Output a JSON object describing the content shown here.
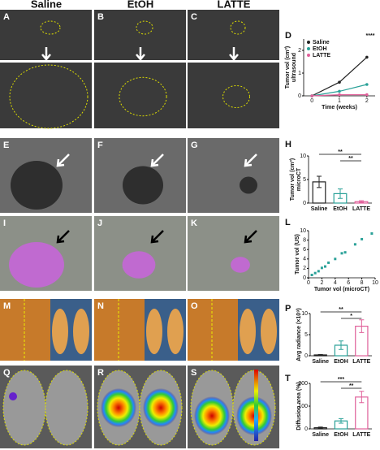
{
  "column_headers": [
    "Saline",
    "EtOH",
    "LATTE"
  ],
  "panel_labels": [
    "A",
    "B",
    "C",
    "D",
    "E",
    "F",
    "G",
    "H",
    "I",
    "J",
    "K",
    "L",
    "M",
    "N",
    "O",
    "P",
    "Q",
    "R",
    "S",
    "T"
  ],
  "chart_data": [
    {
      "type": "line",
      "y_label": "Tumor vol (cm³)",
      "y_label_2": "ultrasound",
      "x_label": "Time (weeks)",
      "x": [
        0,
        1,
        2
      ],
      "xlim": [
        -0.3,
        2.3
      ],
      "xticks": [
        0,
        1,
        2
      ],
      "ylim": [
        0,
        2.5
      ],
      "yticks": [
        0,
        1,
        2
      ],
      "annotation": "****",
      "series": [
        {
          "name": "Saline",
          "color": "#222222",
          "values": [
            0,
            0.6,
            1.7
          ]
        },
        {
          "name": "EtOH",
          "color": "#2aa198",
          "values": [
            0,
            0.2,
            0.5
          ]
        },
        {
          "name": "LATTE",
          "color": "#e0609a",
          "values": [
            0,
            0.05,
            0.05
          ]
        }
      ]
    },
    {
      "type": "bar",
      "y_label": "Tumor vol (cm³)",
      "y_label_2": "microCT",
      "categories": [
        "Saline",
        "EtOH",
        "LATTE"
      ],
      "values": [
        4.5,
        2,
        0.3
      ],
      "errors": [
        1.2,
        1,
        0.2
      ],
      "colors": [
        "#222222",
        "#2aa198",
        "#e0609a"
      ],
      "ylim": [
        0,
        10
      ],
      "yticks": [
        0,
        5,
        10
      ],
      "annotations": [
        "**",
        "**"
      ]
    },
    {
      "type": "scatter",
      "y_label": "Tumor vol (US)",
      "x_label": "Tumor vol (microCT)",
      "x": [
        0.5,
        1,
        1.5,
        2,
        2.5,
        3,
        4,
        5,
        5.5,
        7,
        8,
        9.5
      ],
      "values": [
        0.6,
        1,
        1.4,
        2.1,
        2.4,
        3.2,
        4,
        5.2,
        5.4,
        7.1,
        8.2,
        9.4
      ],
      "color": "#2aa198",
      "xlim": [
        0,
        10
      ],
      "xticks": [
        0,
        2,
        4,
        6,
        8,
        10
      ],
      "ylim": [
        0,
        10
      ],
      "yticks": [
        0,
        2,
        4,
        6,
        8,
        10
      ]
    },
    {
      "type": "bar",
      "y_label": "Avg radiance (×10⁹)",
      "categories": [
        "Saline",
        "EtOH",
        "LATTE"
      ],
      "values": [
        0.2,
        2.5,
        7
      ],
      "errors": [
        0.1,
        1,
        1.5
      ],
      "colors": [
        "#222222",
        "#2aa198",
        "#e0609a"
      ],
      "ylim": [
        0,
        10
      ],
      "yticks": [
        0,
        5,
        10
      ],
      "annotations": [
        "**",
        "*"
      ]
    },
    {
      "type": "bar",
      "y_label": "Diffusion area (%)",
      "categories": [
        "Saline",
        "EtOH",
        "LATTE"
      ],
      "values": [
        5,
        35,
        140
      ],
      "errors": [
        3,
        10,
        25
      ],
      "colors": [
        "#222222",
        "#2aa198",
        "#e0609a"
      ],
      "ylim": [
        0,
        200
      ],
      "yticks": [
        0,
        100,
        200
      ],
      "annotations": [
        "***",
        "**"
      ]
    }
  ]
}
